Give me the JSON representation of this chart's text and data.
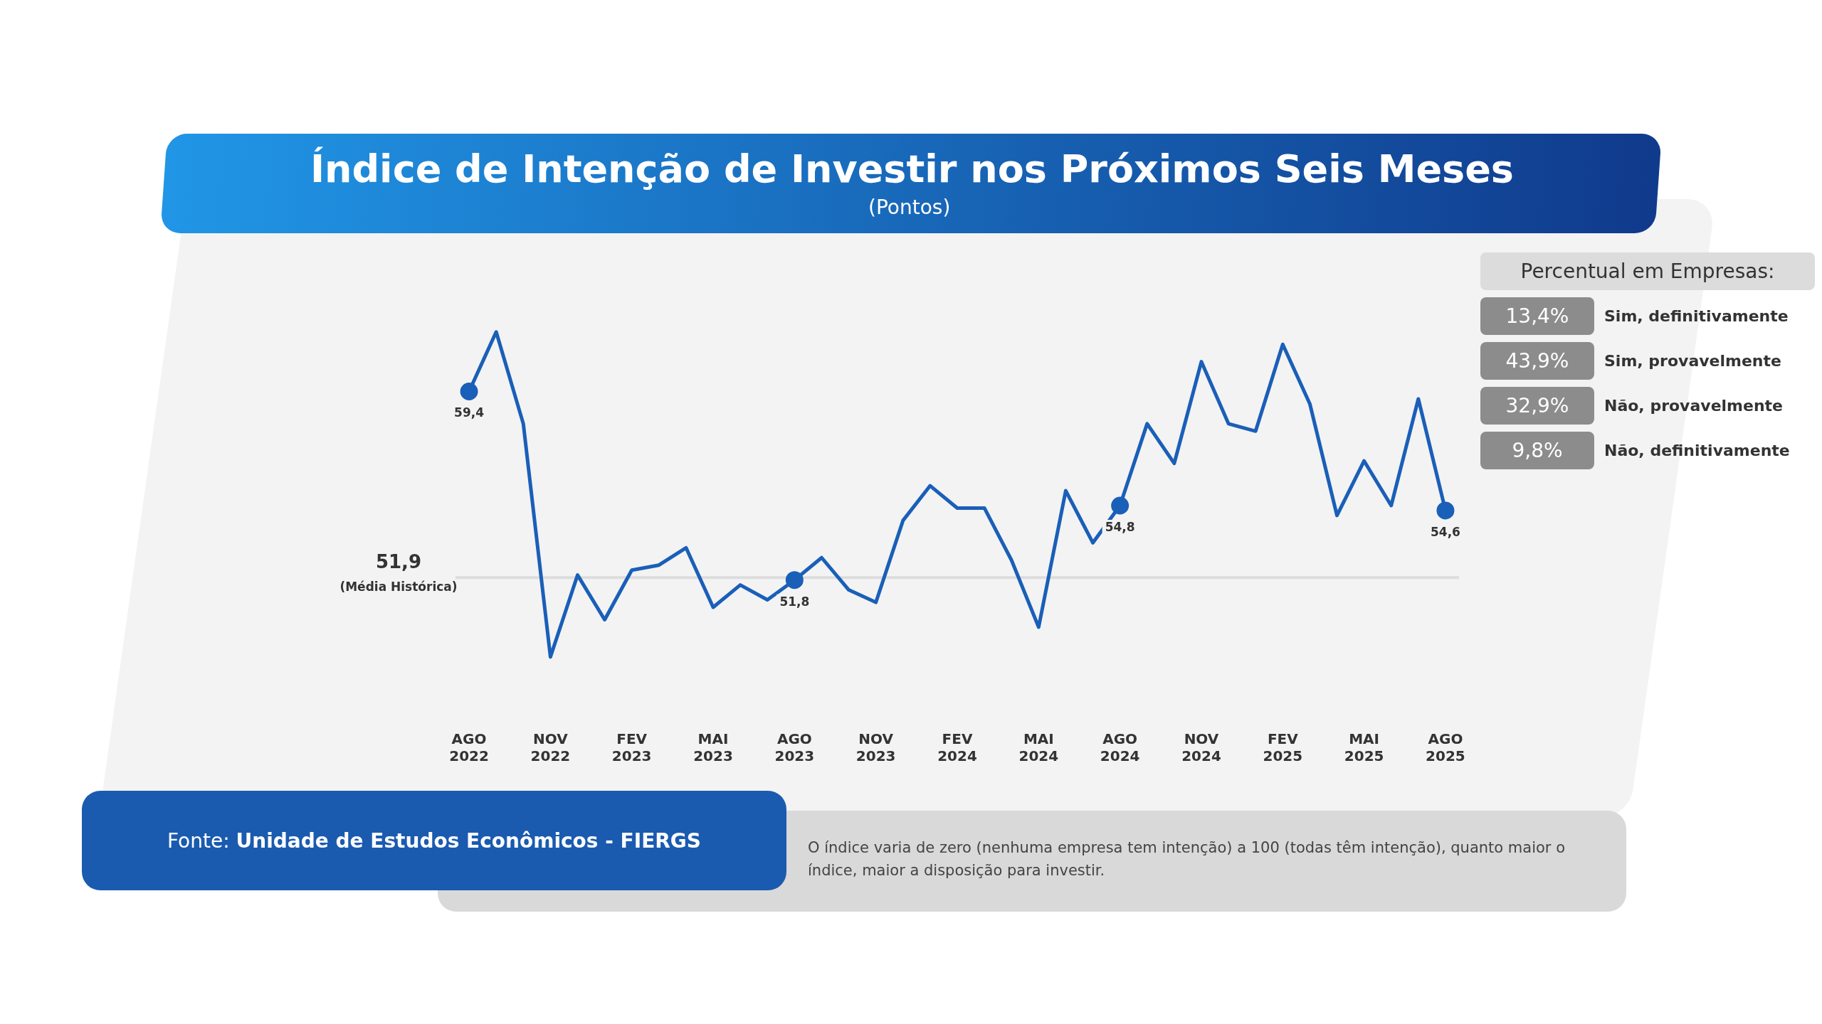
{
  "chart_data": [
    {
      "type": "line",
      "title": "Índice de Intenção de Investir nos Próximos Seis Meses",
      "subtitle": "(Pontos)",
      "categories": [
        "AGO 2022",
        null,
        null,
        "NOV 2022",
        null,
        null,
        "FEV 2023",
        null,
        null,
        "MAI 2023",
        null,
        null,
        "AGO 2023",
        null,
        null,
        "NOV 2023",
        null,
        null,
        "FEV 2024",
        null,
        null,
        "MAI 2024",
        null,
        null,
        "AGO 2024",
        null,
        null,
        "NOV 2024",
        null,
        null,
        "FEV 2025",
        null,
        null,
        "MAI 2025",
        null,
        null,
        "AGO 2025"
      ],
      "series": [
        {
          "color": "#1a5fb8",
          "values": [
            59.4,
            61.8,
            58.1,
            48.7,
            52.0,
            50.2,
            52.2,
            52.4,
            53.1,
            50.7,
            51.6,
            51.0,
            51.8,
            52.7,
            51.4,
            50.9,
            54.2,
            55.6,
            54.7,
            54.7,
            52.6,
            49.9,
            55.4,
            53.3,
            54.8,
            58.1,
            56.5,
            60.6,
            58.1,
            57.8,
            61.3,
            58.9,
            54.4,
            56.6,
            54.8,
            59.1,
            54.6
          ],
          "value_labels": [
            "59,4",
            null,
            null,
            null,
            null,
            null,
            null,
            null,
            null,
            null,
            null,
            null,
            "51,8",
            null,
            null,
            null,
            null,
            null,
            null,
            null,
            null,
            null,
            null,
            null,
            "54,8",
            null,
            null,
            null,
            null,
            null,
            null,
            null,
            null,
            null,
            null,
            null,
            "54,6"
          ]
        }
      ],
      "ref_lines": [
        {
          "axis": "y",
          "value": 51.9,
          "label": "51,9 (Média Histórica)",
          "color": "#dddddd"
        }
      ],
      "legend": false,
      "annotations": [
        "Fonte: Unidade de Estudos Econômicos - FIERGS",
        "O índice varia de zero (nenhuma empresa tem intenção) a 100 (todas têm intenção), quanto maior o índice, maior a disposição para investir."
      ]
    },
    {
      "type": "other",
      "title": "Percentual em Empresas:",
      "categories": [
        "Sim, definitivamente",
        "Sim, provavelmente",
        "Não, provavelmente",
        "Não, definitivamente"
      ],
      "value_labels": [
        "13,4%",
        "43,9%",
        "32,9%",
        "9,8%"
      ]
    }
  ]
}
